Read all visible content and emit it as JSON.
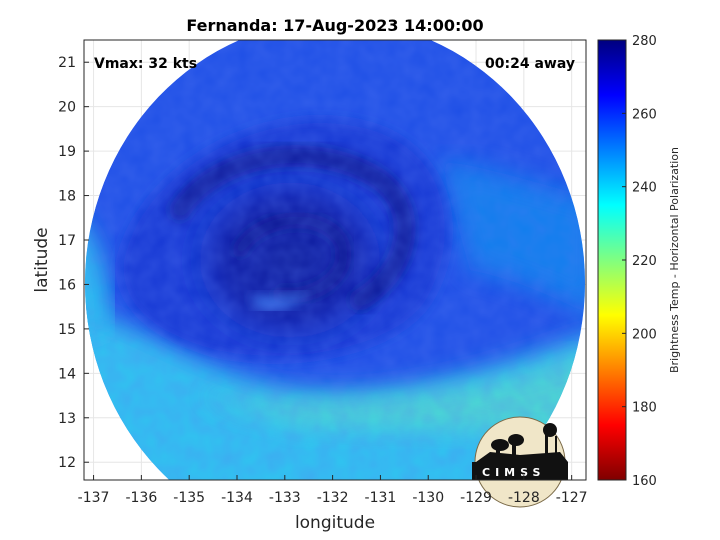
{
  "figure": {
    "title": "Fernanda: 17-Aug-2023 14:00:00",
    "vmax_label": "Vmax: 32 kts",
    "time_label": "00:24 away",
    "xlabel": "longitude",
    "ylabel": "latitude",
    "colorbar_label": "Brightness Temp - Horizontal Polarization",
    "logo_text": "CIMSS"
  },
  "map_extent": {
    "lon_range": [
      -137.2,
      -126.7
    ],
    "lat_range": [
      11.6,
      21.5
    ]
  },
  "x_ticks": [
    "-137",
    "-136",
    "-135",
    "-134",
    "-133",
    "-132",
    "-131",
    "-130",
    "-129",
    "-128",
    "-127"
  ],
  "y_ticks": [
    "12",
    "13",
    "14",
    "15",
    "16",
    "17",
    "18",
    "19",
    "20",
    "21"
  ],
  "colorbar": {
    "range": [
      160,
      280
    ],
    "ticks": [
      "160",
      "180",
      "200",
      "220",
      "240",
      "260",
      "280"
    ],
    "colormap": "jet",
    "colors": [
      "#7f0000",
      "#ff0000",
      "#ff8000",
      "#ffff00",
      "#80ff80",
      "#00ffff",
      "#0080ff",
      "#0000ff",
      "#00007f"
    ]
  },
  "swath": {
    "storm_center_lon": -132.7,
    "storm_center_lat": 16.2
  }
}
